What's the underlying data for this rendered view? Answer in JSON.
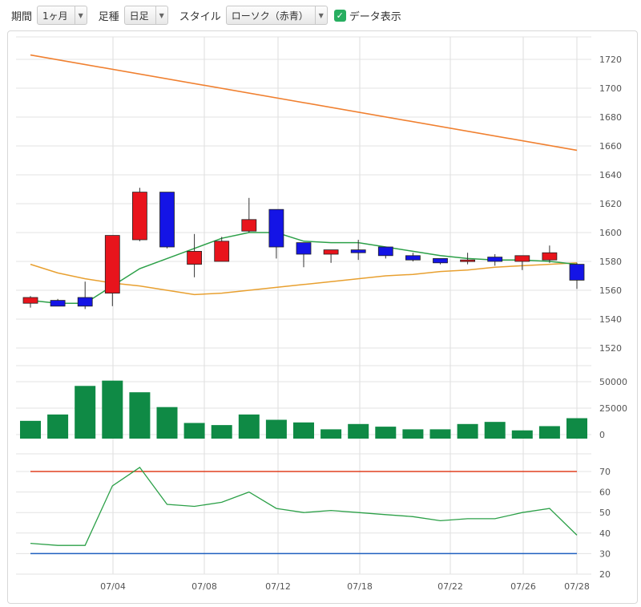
{
  "toolbar": {
    "period_label": "期間",
    "period_value": "1ヶ月",
    "foot_label": "足種",
    "foot_value": "日足",
    "style_label": "スタイル",
    "style_value": "ローソク（赤青）",
    "data_display_label": "データ表示",
    "data_display_checked": true
  },
  "colors": {
    "up": "#e8141c",
    "down": "#1414e6",
    "volume": "#0f8a45",
    "ma_short": "#2ca048",
    "ma_long": "#e8a030",
    "trend": "#f08030",
    "rsi": "#2ca048",
    "rsi_upper": "#e04020",
    "rsi_lower": "#2060c0"
  },
  "chart_data": [
    {
      "type": "candlestick",
      "ylim": [
        1510,
        1730
      ],
      "yticks": [
        1520,
        1540,
        1560,
        1580,
        1600,
        1620,
        1640,
        1660,
        1680,
        1700,
        1720
      ],
      "xticks": [
        "07/04",
        "07/08",
        "07/12",
        "07/18",
        "07/22",
        "07/26",
        "07/28"
      ],
      "candles": [
        {
          "o": 1551,
          "h": 1556,
          "l": 1548,
          "c": 1555
        },
        {
          "o": 1553,
          "h": 1554,
          "l": 1549,
          "c": 1549
        },
        {
          "o": 1555,
          "h": 1566,
          "l": 1547,
          "c": 1549
        },
        {
          "o": 1558,
          "h": 1598,
          "l": 1549,
          "c": 1598
        },
        {
          "o": 1595,
          "h": 1631,
          "l": 1594,
          "c": 1628
        },
        {
          "o": 1628,
          "h": 1628,
          "l": 1589,
          "c": 1590
        },
        {
          "o": 1578,
          "h": 1599,
          "l": 1569,
          "c": 1587
        },
        {
          "o": 1580,
          "h": 1597,
          "l": 1580,
          "c": 1594
        },
        {
          "o": 1601,
          "h": 1624,
          "l": 1600,
          "c": 1609
        },
        {
          "o": 1616,
          "h": 1616,
          "l": 1582,
          "c": 1590
        },
        {
          "o": 1593,
          "h": 1593,
          "l": 1576,
          "c": 1585
        },
        {
          "o": 1585,
          "h": 1588,
          "l": 1579,
          "c": 1588
        },
        {
          "o": 1588,
          "h": 1595,
          "l": 1581,
          "c": 1586
        },
        {
          "o": 1590,
          "h": 1590,
          "l": 1582,
          "c": 1584
        },
        {
          "o": 1584,
          "h": 1586,
          "l": 1580,
          "c": 1581
        },
        {
          "o": 1582,
          "h": 1582,
          "l": 1578,
          "c": 1579
        },
        {
          "o": 1580,
          "h": 1586,
          "l": 1578,
          "c": 1581
        },
        {
          "o": 1583,
          "h": 1585,
          "l": 1577,
          "c": 1580
        },
        {
          "o": 1580,
          "h": 1584,
          "l": 1574,
          "c": 1584
        },
        {
          "o": 1581,
          "h": 1591,
          "l": 1579,
          "c": 1586
        },
        {
          "o": 1578,
          "h": 1579,
          "l": 1561,
          "c": 1567
        }
      ],
      "ma_short": [
        1553,
        1551,
        1551,
        1563,
        1575,
        1582,
        1589,
        1596,
        1600,
        1600,
        1594,
        1593,
        1593,
        1590,
        1587,
        1584,
        1582,
        1581,
        1581,
        1580,
        1578
      ],
      "ma_long": [
        1578,
        1572,
        1568,
        1565,
        1563,
        1560,
        1557,
        1558,
        1560,
        1562,
        1564,
        1566,
        1568,
        1570,
        1571,
        1573,
        1574,
        1576,
        1577,
        1578,
        1579
      ],
      "trend_line": {
        "start": 1723,
        "end": 1657
      }
    },
    {
      "type": "bar",
      "series": "volume",
      "yticks": [
        0,
        25000,
        50000
      ],
      "ylim": [
        0,
        72000
      ],
      "values": [
        13000,
        19000,
        46000,
        51000,
        40000,
        26000,
        11000,
        9000,
        19000,
        14000,
        11500,
        5000,
        10000,
        7500,
        5000,
        5000,
        10000,
        12000,
        4000,
        8000,
        15500
      ]
    },
    {
      "type": "line",
      "series": "rsi",
      "yticks": [
        20,
        30,
        40,
        50,
        60,
        70
      ],
      "ylim": [
        19,
        78
      ],
      "values": [
        35,
        34,
        34,
        63,
        72,
        54,
        53,
        55,
        60,
        52,
        50,
        51,
        50,
        49,
        48,
        46,
        47,
        47,
        50,
        52,
        39
      ],
      "upper": 70,
      "lower": 30
    }
  ]
}
